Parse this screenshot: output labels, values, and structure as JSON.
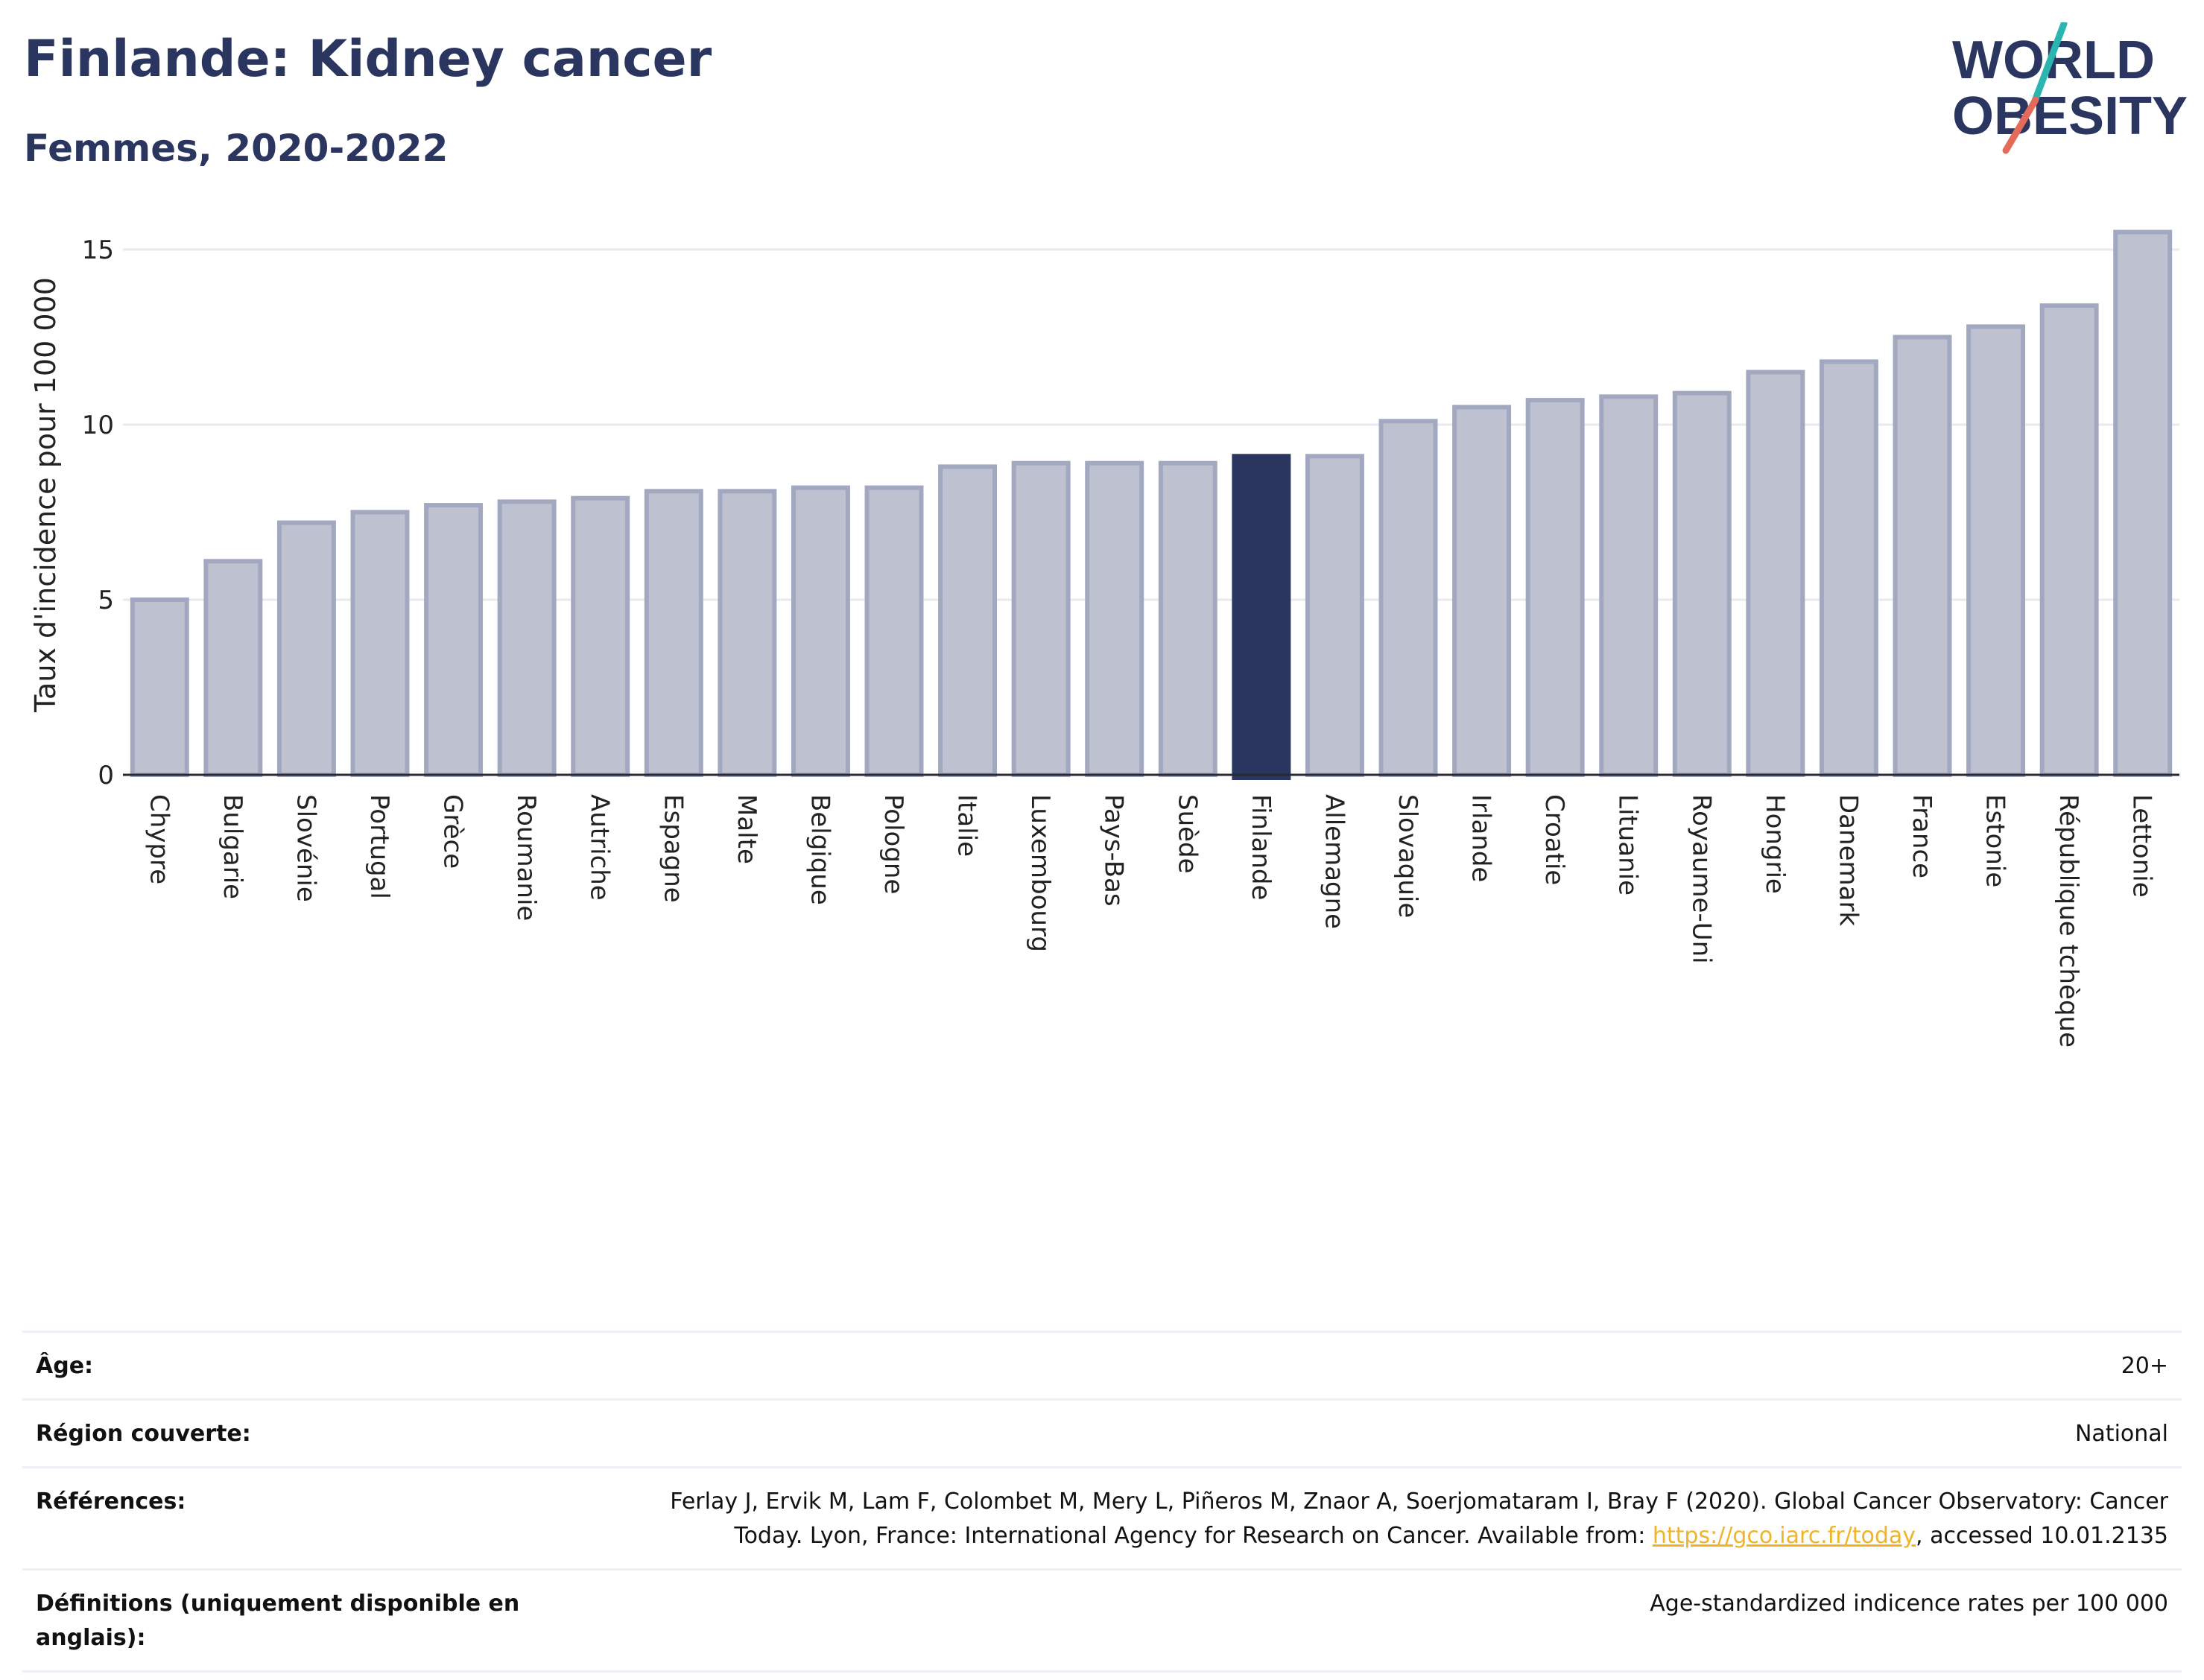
{
  "header": {
    "title": "Finlande: Kidney cancer",
    "subtitle": "Femmes, 2020-2022"
  },
  "logo": {
    "line1": "WORLD",
    "line2": "OBESITY"
  },
  "colors": {
    "bar": "#bec2d0",
    "bar_stroke": "#a2a8c0",
    "highlight": "#2a3560",
    "text": "#2a3560",
    "grid": "#e8eaf0",
    "link": "#f0b428"
  },
  "chart_data": {
    "type": "bar",
    "ylabel": "Taux d'incidence pour 100 000",
    "ylim": [
      0,
      16
    ],
    "yticks": [
      0,
      5,
      10,
      15
    ],
    "grid": true,
    "highlight": "Finlande",
    "categories": [
      "Chypre",
      "Bulgarie",
      "Slovénie",
      "Portugal",
      "Grèce",
      "Roumanie",
      "Autriche",
      "Espagne",
      "Malte",
      "Belgique",
      "Pologne",
      "Italie",
      "Luxembourg",
      "Pays-Bas",
      "Suède",
      "Finlande",
      "Allemagne",
      "Slovaquie",
      "Irlande",
      "Croatie",
      "Lituanie",
      "Royaume-Uni",
      "Hongrie",
      "Danemark",
      "France",
      "Estonie",
      "République tchèque",
      "Lettonie"
    ],
    "values": [
      5.0,
      6.1,
      7.2,
      7.5,
      7.7,
      7.8,
      7.9,
      8.1,
      8.1,
      8.2,
      8.2,
      8.8,
      8.9,
      8.9,
      8.9,
      9.1,
      9.1,
      10.1,
      10.5,
      10.7,
      10.8,
      10.9,
      11.5,
      11.8,
      12.5,
      12.8,
      13.4,
      15.5
    ]
  },
  "info": {
    "age_label": "Âge:",
    "age_value": "20+",
    "region_label": "Région couverte:",
    "region_value": "National",
    "references_label": "Références:",
    "references_text": "Ferlay J, Ervik M, Lam F, Colombet M, Mery L, Piñeros M, Znaor A, Soerjomataram I, Bray F (2020). Global Cancer Observatory: Cancer Today. Lyon, France: International Agency for Research on Cancer. Available from: ",
    "references_link": "https://gco.iarc.fr/today",
    "references_suffix": ", accessed 10.01.2135",
    "definitions_label": "Définitions (uniquement disponible en anglais):",
    "definitions_value": "Age-standardized indicence rates per 100 000"
  }
}
